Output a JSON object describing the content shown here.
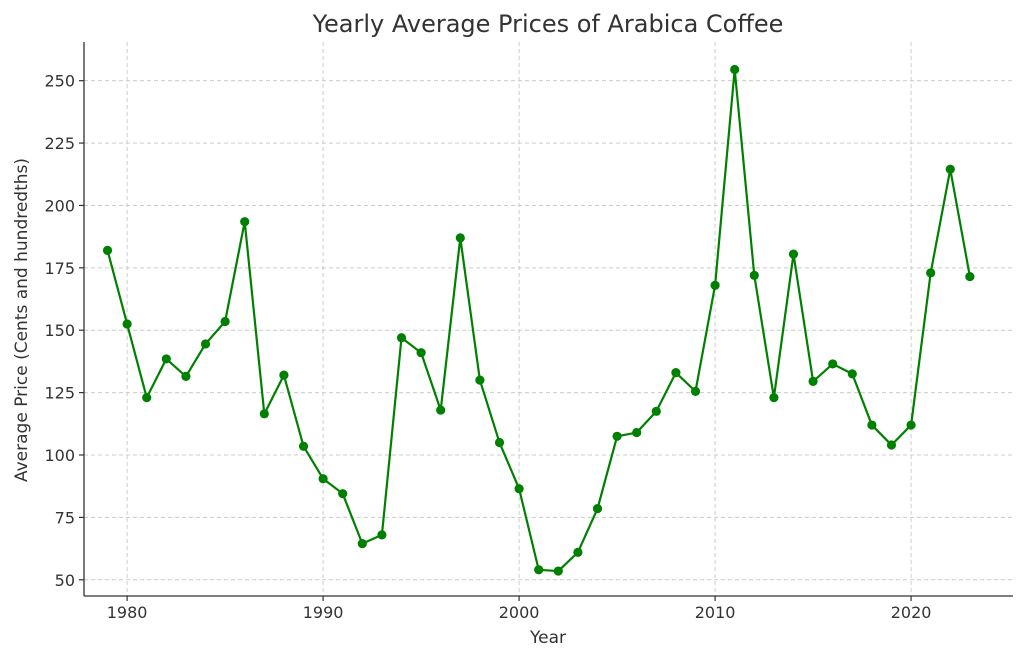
{
  "chart_data": {
    "type": "line",
    "title": "Yearly Average Prices of Arabica Coffee",
    "xlabel": "Year",
    "ylabel": "Average Price (Cents and hundredths)",
    "xlim": [
      1977.8,
      2025.2
    ],
    "ylim": [
      43.5,
      265.5
    ],
    "x_ticks": [
      1980,
      1990,
      2000,
      2010,
      2020
    ],
    "y_ticks": [
      50,
      75,
      100,
      125,
      150,
      175,
      200,
      225,
      250
    ],
    "grid": true,
    "series": [
      {
        "color": "#008000",
        "marker": "circle",
        "x": [
          1979,
          1980,
          1981,
          1982,
          1983,
          1984,
          1985,
          1986,
          1987,
          1988,
          1989,
          1990,
          1991,
          1992,
          1993,
          1994,
          1995,
          1996,
          1997,
          1998,
          1999,
          2000,
          2001,
          2002,
          2003,
          2004,
          2005,
          2006,
          2007,
          2008,
          2009,
          2010,
          2011,
          2012,
          2013,
          2014,
          2015,
          2016,
          2017,
          2018,
          2019,
          2020,
          2021,
          2022,
          2023
        ],
        "values": [
          182,
          152.5,
          123,
          138.5,
          131.5,
          144.5,
          153.5,
          193.5,
          116.5,
          132,
          103.5,
          90.5,
          84.5,
          64.5,
          68,
          147,
          141,
          118,
          187,
          130,
          105,
          86.5,
          54,
          53.5,
          61,
          78.5,
          107.5,
          109,
          117.5,
          133,
          125.5,
          168,
          254.5,
          172,
          123,
          180.5,
          129.5,
          136.5,
          132.5,
          112,
          104,
          112,
          173,
          214.5,
          171.5
        ]
      }
    ]
  }
}
